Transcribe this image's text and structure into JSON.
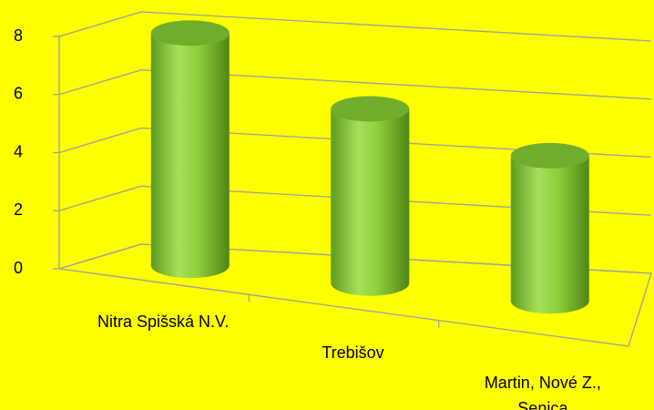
{
  "chart_data": {
    "type": "cylinder",
    "categories": [
      "Nitra Spišská N.V.",
      "Trebišov",
      "Martin, Nové Z., Senica"
    ],
    "values": [
      8,
      6,
      5
    ],
    "color": "#8fce3c",
    "ylim": [
      0,
      8
    ],
    "yticks": [
      0,
      2,
      4,
      6,
      8
    ],
    "grid": true
  }
}
